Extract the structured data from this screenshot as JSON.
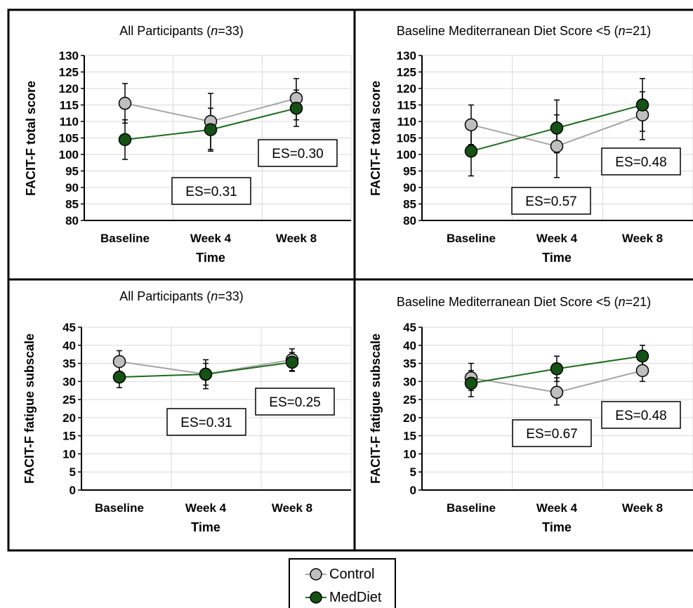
{
  "legend": {
    "control_label": "Control",
    "meddiet_label": "MedDiet"
  },
  "colors": {
    "control_line": "#a6a6a6",
    "control_fill": "#bfbfbf",
    "meddiet_line": "#1e6b1e",
    "meddiet_fill": "#155215",
    "grid": "#d9d9d9",
    "error_bar": "#000000"
  },
  "panels": [
    {
      "title_prefix": "All Participants (",
      "title_n": "n",
      "title_suffix": "=33)",
      "es_left": "ES=0.31",
      "es_right": "ES=0.30"
    },
    {
      "title_prefix": "Baseline Mediterranean Diet Score <5 (",
      "title_n": "n",
      "title_suffix": "=21)",
      "es_left": "ES=0.57",
      "es_right": "ES=0.48"
    },
    {
      "title_prefix": "All Participants (",
      "title_n": "n",
      "title_suffix": "=33)",
      "es_left": "ES=0.31",
      "es_right": "ES=0.25"
    },
    {
      "title_prefix": "Baseline Mediterranean Diet Score <5 (",
      "title_n": "n",
      "title_suffix": "=21)",
      "es_left": "ES=0.67",
      "es_right": "ES=0.48"
    }
  ],
  "chart_data": [
    {
      "type": "line",
      "title": "All Participants (n=33)",
      "xlabel": "Time",
      "ylabel": "FACIT-F total score",
      "categories": [
        "Baseline",
        "Week 4",
        "Week 8"
      ],
      "ylim": [
        80,
        130
      ],
      "yticks": [
        80,
        85,
        90,
        95,
        100,
        105,
        110,
        115,
        120,
        125,
        130
      ],
      "grid": true,
      "series": [
        {
          "name": "Control",
          "values": [
            115.5,
            110,
            117
          ],
          "err_low": [
            109.5,
            101.5,
            110.5
          ],
          "err_high": [
            121.5,
            118.5,
            123
          ]
        },
        {
          "name": "MedDiet",
          "values": [
            104.5,
            107.5,
            114
          ],
          "err_low": [
            98.5,
            101,
            108.5
          ],
          "err_high": [
            110.5,
            114,
            119.5
          ]
        }
      ],
      "annotations": [
        "ES=0.31",
        "ES=0.30"
      ]
    },
    {
      "type": "line",
      "title": "Baseline Mediterranean Diet Score <5 (n=21)",
      "xlabel": "Time",
      "ylabel": "FACIT-F total score",
      "categories": [
        "Baseline",
        "Week 4",
        "Week 8"
      ],
      "ylim": [
        80,
        130
      ],
      "yticks": [
        80,
        85,
        90,
        95,
        100,
        105,
        110,
        115,
        120,
        125,
        130
      ],
      "grid": true,
      "series": [
        {
          "name": "Control",
          "values": [
            109,
            102.5,
            112
          ],
          "err_low": [
            103,
            93,
            104.5
          ],
          "err_high": [
            115,
            112,
            119
          ]
        },
        {
          "name": "MedDiet",
          "values": [
            101,
            108,
            115
          ],
          "err_low": [
            93.5,
            100.5,
            107
          ],
          "err_high": [
            108,
            116.5,
            123
          ]
        }
      ],
      "annotations": [
        "ES=0.57",
        "ES=0.48"
      ]
    },
    {
      "type": "line",
      "title": "All Participants (n=33)",
      "xlabel": "Time",
      "ylabel": "FACIT-F fatigue subscale",
      "categories": [
        "Baseline",
        "Week 4",
        "Week 8"
      ],
      "ylim": [
        0,
        45
      ],
      "yticks": [
        0,
        5,
        10,
        15,
        20,
        25,
        30,
        35,
        40,
        45
      ],
      "grid": true,
      "series": [
        {
          "name": "Control",
          "values": [
            35.5,
            32,
            36
          ],
          "err_low": [
            32.5,
            28,
            33
          ],
          "err_high": [
            38.5,
            36,
            39
          ]
        },
        {
          "name": "MedDiet",
          "values": [
            31.2,
            32,
            35.3
          ],
          "err_low": [
            28.3,
            29,
            32.8
          ],
          "err_high": [
            34,
            35,
            38
          ]
        }
      ],
      "annotations": [
        "ES=0.31",
        "ES=0.25"
      ]
    },
    {
      "type": "line",
      "title": "Baseline Mediterranean Diet Score <5 (n=21)",
      "xlabel": "Time",
      "ylabel": "FACIT-F fatigue subscale",
      "categories": [
        "Baseline",
        "Week 4",
        "Week 8"
      ],
      "ylim": [
        0,
        45
      ],
      "yticks": [
        0,
        5,
        10,
        15,
        20,
        25,
        30,
        35,
        40,
        45
      ],
      "grid": true,
      "series": [
        {
          "name": "Control",
          "values": [
            31,
            27,
            33
          ],
          "err_low": [
            27.5,
            23.5,
            30
          ],
          "err_high": [
            35,
            31,
            36.5
          ]
        },
        {
          "name": "MedDiet",
          "values": [
            29.5,
            33.5,
            37
          ],
          "err_low": [
            25.8,
            30,
            33.8
          ],
          "err_high": [
            33,
            37,
            40
          ]
        }
      ],
      "annotations": [
        "ES=0.67",
        "ES=0.48"
      ]
    }
  ]
}
